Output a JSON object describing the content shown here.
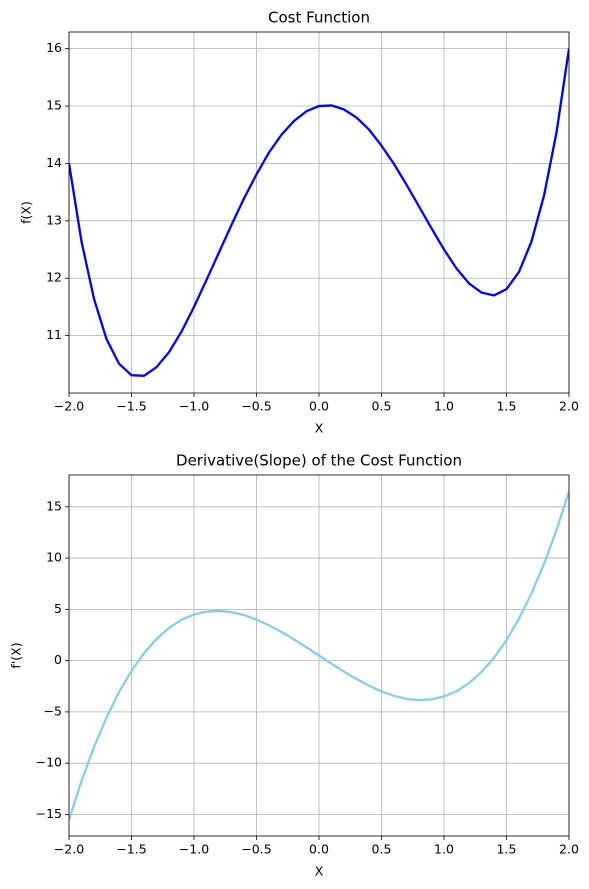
{
  "chart_data": [
    {
      "type": "line",
      "title": "Cost Function",
      "xlabel": "X",
      "ylabel": "f(X)",
      "color": "#0000ee",
      "grid": true,
      "x": [
        -2.0,
        -1.9,
        -1.8,
        -1.7,
        -1.6,
        -1.5,
        -1.4,
        -1.3,
        -1.2,
        -1.1,
        -1.0,
        -0.9,
        -0.8,
        -0.7,
        -0.6,
        -0.5,
        -0.4,
        -0.3,
        -0.2,
        -0.1,
        0.0,
        0.1,
        0.2,
        0.3,
        0.4,
        0.5,
        0.6,
        0.7,
        0.8,
        0.9,
        1.0,
        1.1,
        1.2,
        1.3,
        1.4,
        1.5,
        1.6,
        1.7,
        1.8,
        1.9,
        2.0
      ],
      "values": [
        14.0,
        12.64,
        11.64,
        10.94,
        10.51,
        10.31,
        10.3,
        10.45,
        10.71,
        11.07,
        11.5,
        11.97,
        12.45,
        12.93,
        13.39,
        13.81,
        14.19,
        14.5,
        14.74,
        14.91,
        15.0,
        15.01,
        14.94,
        14.8,
        14.59,
        14.31,
        13.99,
        13.63,
        13.25,
        12.87,
        12.5,
        12.17,
        11.91,
        11.75,
        11.7,
        11.81,
        12.11,
        12.64,
        13.44,
        14.54,
        16.0
      ],
      "xlim": [
        -2,
        2
      ],
      "ylim": [
        10.0,
        16.29
      ],
      "xticks": [
        {
          "value": -2,
          "label": "−2.0"
        },
        {
          "value": -1.5,
          "label": "−1.5"
        },
        {
          "value": -1,
          "label": "−1.0"
        },
        {
          "value": -0.5,
          "label": "−0.5"
        },
        {
          "value": 0,
          "label": "0.0"
        },
        0.5,
        {
          "value": 1,
          "label": "1.0"
        },
        1.5,
        {
          "value": 2,
          "label": "2.0"
        }
      ],
      "yticks": [
        11,
        12,
        13,
        14,
        15,
        16
      ]
    },
    {
      "type": "line",
      "title": "Derivative(Slope) of the Cost Function",
      "xlabel": "X",
      "ylabel": "f'(X)",
      "color": "#87ceeb",
      "grid": true,
      "x": [
        -2.0,
        -1.9,
        -1.8,
        -1.7,
        -1.6,
        -1.5,
        -1.4,
        -1.3,
        -1.2,
        -1.1,
        -1.0,
        -0.9,
        -0.8,
        -0.7,
        -0.6,
        -0.5,
        -0.4,
        -0.3,
        -0.2,
        -0.1,
        0.0,
        0.1,
        0.2,
        0.3,
        0.4,
        0.5,
        0.6,
        0.7,
        0.8,
        0.9,
        1.0,
        1.1,
        1.2,
        1.3,
        1.4,
        1.5,
        1.6,
        1.7,
        1.8,
        1.9,
        2.0
      ],
      "values": [
        -15.5,
        -11.74,
        -8.43,
        -5.55,
        -3.08,
        -1.0,
        0.72,
        2.11,
        3.19,
        3.98,
        4.5,
        4.78,
        4.85,
        4.73,
        4.44,
        4.0,
        3.44,
        2.79,
        2.07,
        1.3,
        0.5,
        -0.3,
        -1.07,
        -1.79,
        -2.44,
        -3.0,
        -3.44,
        -3.73,
        -3.85,
        -3.78,
        -3.5,
        -2.98,
        -2.19,
        -1.11,
        0.28,
        2.0,
        4.08,
        6.55,
        9.43,
        12.74,
        16.5
      ],
      "xlim": [
        -2,
        2
      ],
      "ylim": [
        -17.1,
        18.1
      ],
      "xticks": [
        {
          "value": -2,
          "label": "−2.0"
        },
        {
          "value": -1.5,
          "label": "−1.5"
        },
        {
          "value": -1,
          "label": "−1.0"
        },
        {
          "value": -0.5,
          "label": "−0.5"
        },
        {
          "value": 0,
          "label": "0.0"
        },
        0.5,
        {
          "value": 1,
          "label": "1.0"
        },
        1.5,
        {
          "value": 2,
          "label": "2.0"
        }
      ],
      "yticks": [
        {
          "value": -15,
          "label": "−15"
        },
        {
          "value": -10,
          "label": "−10"
        },
        {
          "value": -5,
          "label": "−5"
        },
        0,
        5,
        10,
        15
      ]
    }
  ]
}
